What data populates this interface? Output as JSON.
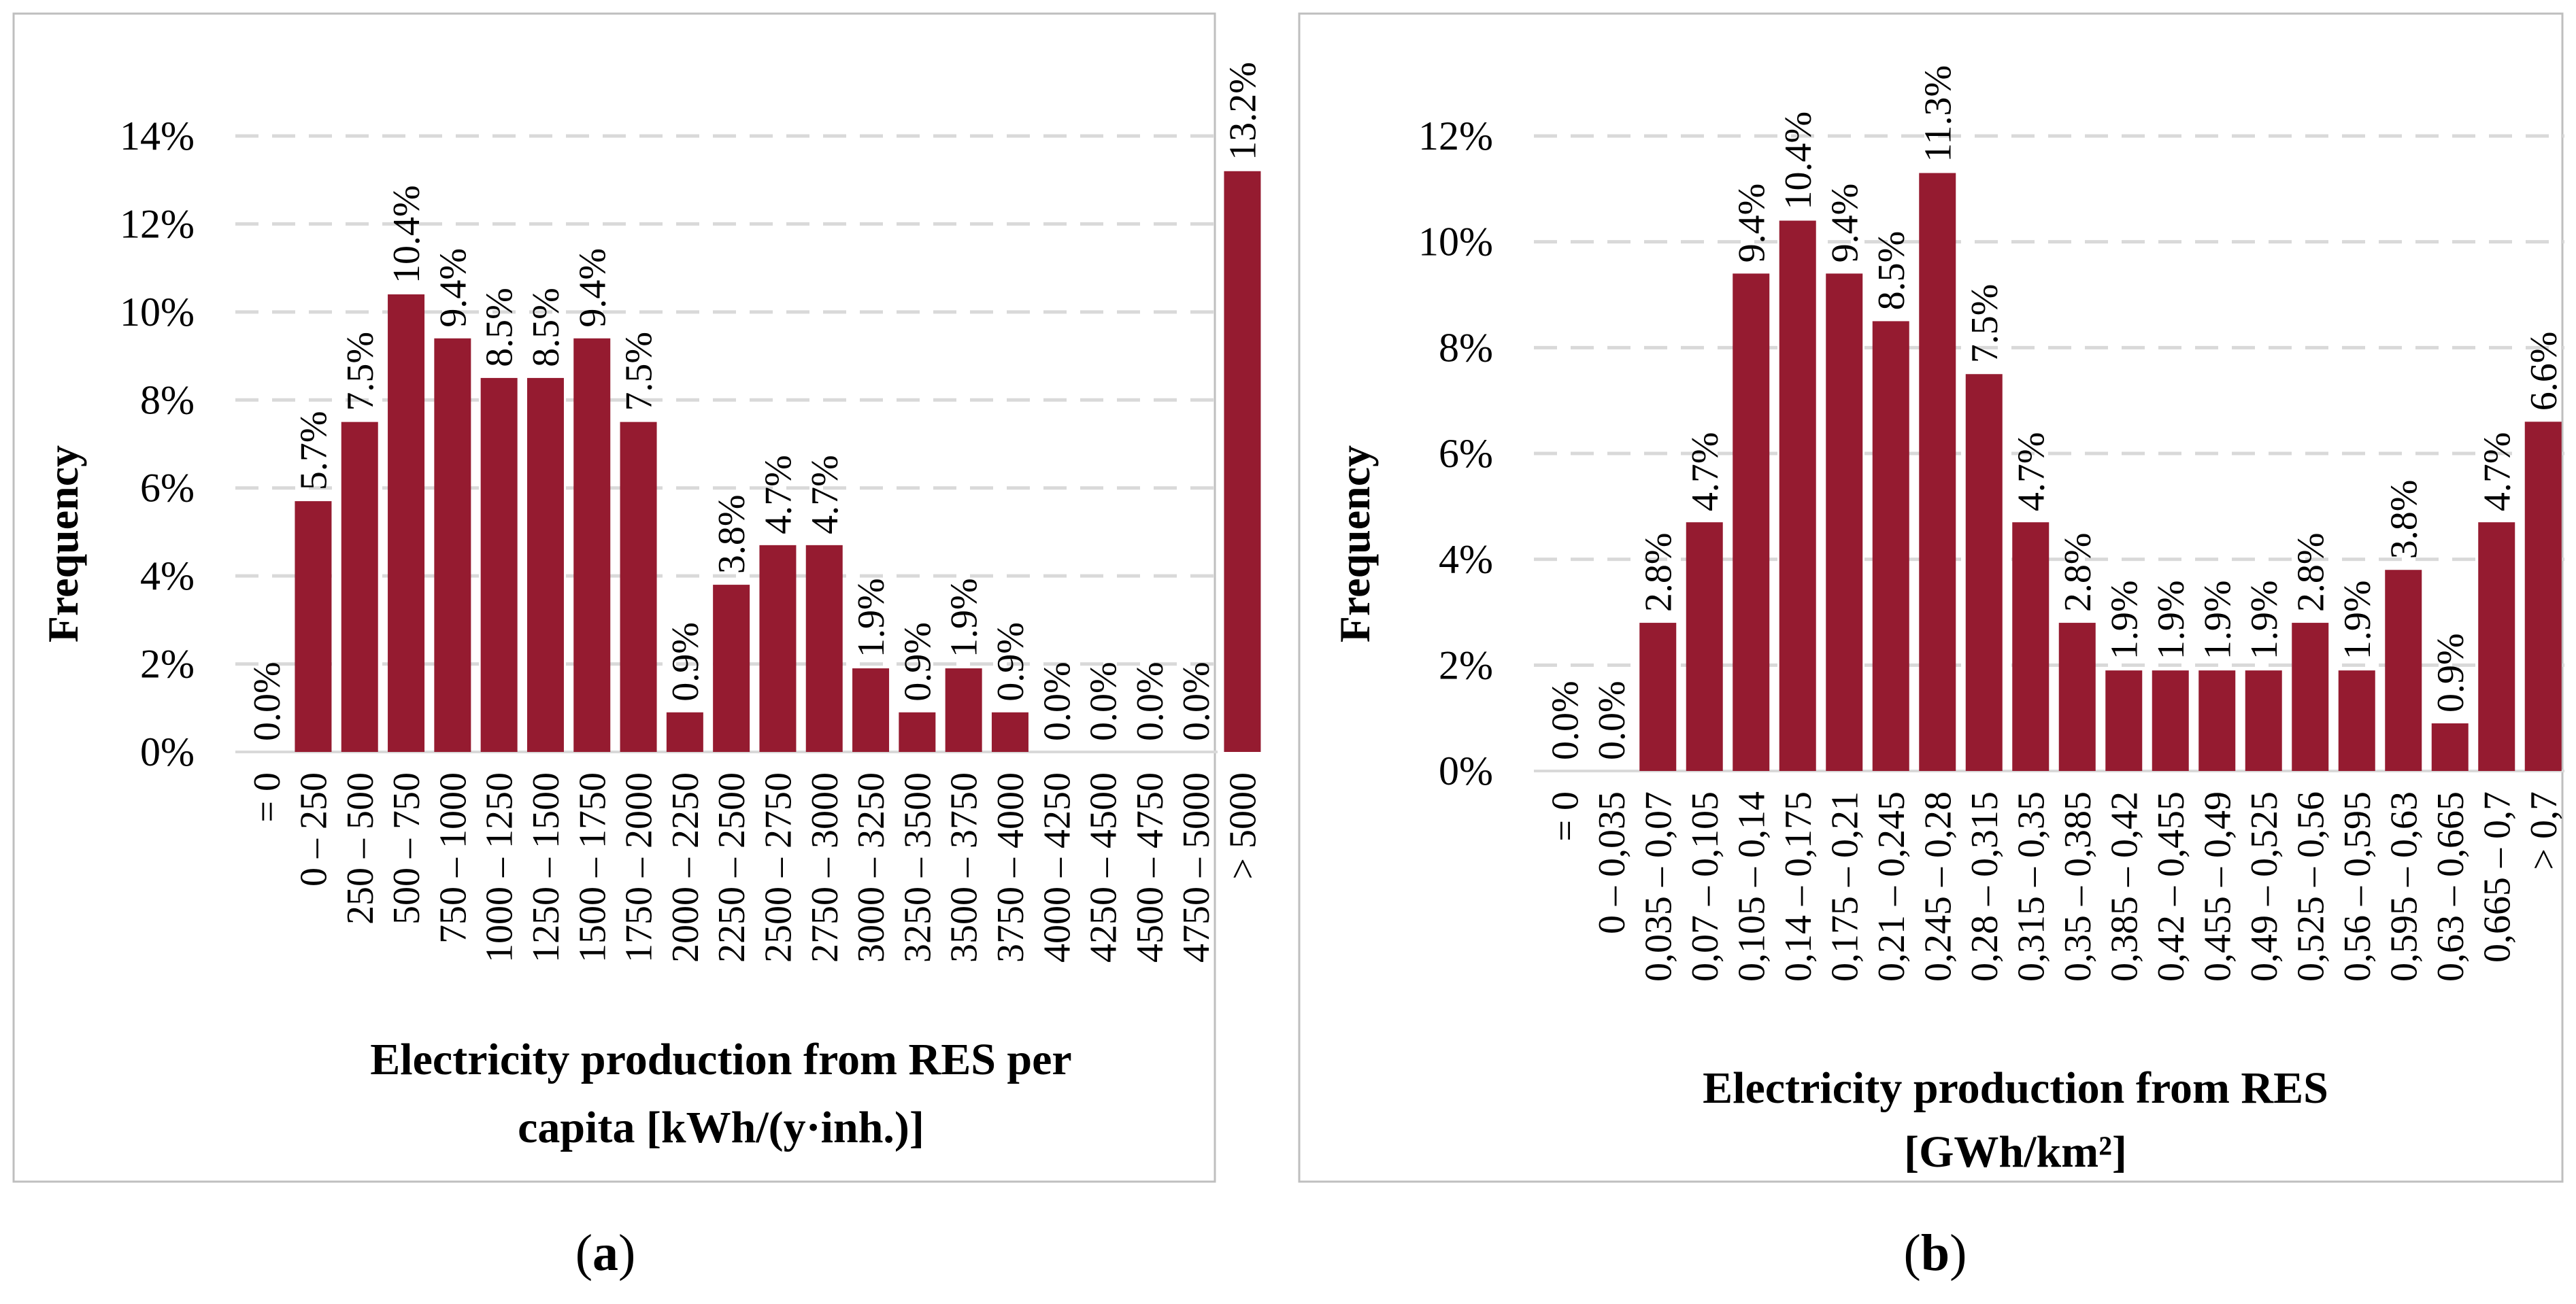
{
  "colors": {
    "bar": "#951b30",
    "grid": "#d9d9d9",
    "frame": "#bfbfbf",
    "text": "#000000"
  },
  "captions": [
    {
      "open": "(",
      "letter": "a",
      "close": ")"
    },
    {
      "open": "(",
      "letter": "b",
      "close": ")"
    }
  ],
  "chart_data": [
    {
      "type": "bar",
      "panel": "a",
      "ylabel": "Frequency",
      "xlabel_lines": [
        "Electricity production from RES per",
        "capita [kWh/(y·inh.)]"
      ],
      "ylim": [
        0,
        14
      ],
      "yticks": [
        "0%",
        "2%",
        "4%",
        "6%",
        "8%",
        "10%",
        "12%",
        "14%"
      ],
      "grid": true,
      "categories": [
        "= 0",
        "0 – 250",
        "250 – 500",
        "500 – 750",
        "750 – 1000",
        "1000 – 1250",
        "1250 – 1500",
        "1500 – 1750",
        "1750 – 2000",
        "2000 – 2250",
        "2250 – 2500",
        "2500 – 2750",
        "2750 – 3000",
        "3000 – 3250",
        "3250 – 3500",
        "3500 – 3750",
        "3750 – 4000",
        "4000 – 4250",
        "4250 – 4500",
        "4500 – 4750",
        "4750 – 5000",
        "> 5000"
      ],
      "values": [
        0.0,
        5.7,
        7.5,
        10.4,
        9.4,
        8.5,
        8.5,
        9.4,
        7.5,
        0.9,
        3.8,
        4.7,
        4.7,
        1.9,
        0.9,
        1.9,
        0.9,
        0.0,
        0.0,
        0.0,
        0.0,
        13.2
      ],
      "data_labels": [
        "0.0%",
        "5.7%",
        "7.5%",
        "10.4%",
        "9.4%",
        "8.5%",
        "8.5%",
        "9.4%",
        "7.5%",
        "0.9%",
        "3.8%",
        "4.7%",
        "4.7%",
        "1.9%",
        "0.9%",
        "1.9%",
        "0.9%",
        "0.0%",
        "0.0%",
        "0.0%",
        "0.0%",
        "13.2%"
      ]
    },
    {
      "type": "bar",
      "panel": "b",
      "ylabel": "Frequency",
      "xlabel_lines": [
        "Electricity production from RES",
        "[GWh/km²]"
      ],
      "ylim": [
        0,
        12
      ],
      "yticks": [
        "0%",
        "2%",
        "4%",
        "6%",
        "8%",
        "10%",
        "12%"
      ],
      "grid": true,
      "categories": [
        "= 0",
        "0 – 0,035",
        "0,035 – 0,07",
        "0,07 – 0,105",
        "0,105 – 0,14",
        "0,14 – 0,175",
        "0,175 – 0,21",
        "0,21 – 0,245",
        "0,245 – 0,28",
        "0,28 – 0,315",
        "0,315 – 0,35",
        "0,35 – 0,385",
        "0,385 – 0,42",
        "0,42 – 0,455",
        "0,455 – 0,49",
        "0,49 – 0,525",
        "0,525 – 0,56",
        "0,56 – 0,595",
        "0,595 – 0,63",
        "0,63 – 0,665",
        "0,665 – 0,7",
        "> 0,7"
      ],
      "values": [
        0.0,
        0.0,
        2.8,
        4.7,
        9.4,
        10.4,
        9.4,
        8.5,
        11.3,
        7.5,
        4.7,
        2.8,
        1.9,
        1.9,
        1.9,
        1.9,
        2.8,
        1.9,
        3.8,
        0.9,
        4.7,
        6.6
      ],
      "data_labels": [
        "0.0%",
        "0.0%",
        "2.8%",
        "4.7%",
        "9.4%",
        "10.4%",
        "9.4%",
        "8.5%",
        "11.3%",
        "7.5%",
        "4.7%",
        "2.8%",
        "1.9%",
        "1.9%",
        "1.9%",
        "1.9%",
        "2.8%",
        "1.9%",
        "3.8%",
        "0.9%",
        "4.7%",
        "6.6%"
      ]
    }
  ]
}
